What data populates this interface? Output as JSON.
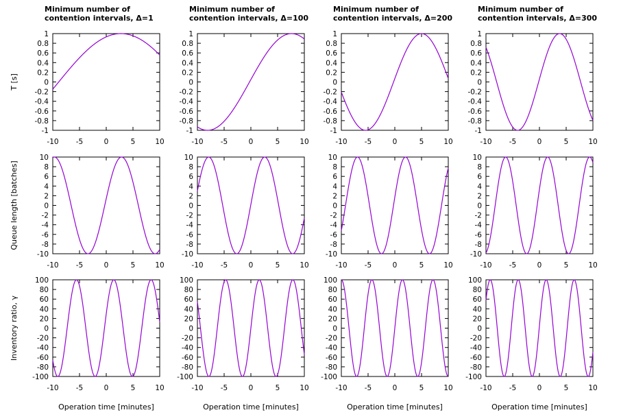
{
  "chart_data": {
    "type": "line",
    "layout": "3 rows x 4 columns",
    "line_color": "#9400d3",
    "column_titles": [
      [
        "Minimum number of",
        "contention intervals, Δ=1"
      ],
      [
        "Minimum number of",
        "contention intervals, Δ=100"
      ],
      [
        "Minimum number of",
        "contention intervals, Δ=200"
      ],
      [
        "Minimum number of",
        "contention intervals, Δ=300"
      ]
    ],
    "row_ylabels": [
      "T [s]",
      "Queue length [batches]",
      "Inventory ratio, γ"
    ],
    "xlabel": "Operation time [minutes]",
    "x_range": [
      -10,
      10
    ],
    "x_ticks": [
      "-10",
      "-5",
      "0",
      "5",
      "10"
    ],
    "rows": [
      {
        "ylim": [
          -1,
          1
        ],
        "y_ticks": [
          "-1",
          "-0.8",
          "-0.6",
          "-0.4",
          "-0.2",
          "0",
          "0.2",
          "0.4",
          "0.6",
          "0.8",
          "1"
        ],
        "series": [
          {
            "name": "T [s], Δ=1",
            "amplitude": 1,
            "frequency": 0.135,
            "phase": 1.2
          },
          {
            "name": "T [s], Δ=100",
            "amplitude": 1,
            "frequency": 0.2,
            "phase": 0.05
          },
          {
            "name": "T [s], Δ=200",
            "amplitude": 1,
            "frequency": 0.3,
            "phase": 0.07
          },
          {
            "name": "T [s], Δ=300",
            "amplitude": 1,
            "frequency": 0.4,
            "phase": 0.06
          }
        ]
      },
      {
        "ylim": [
          -10,
          10
        ],
        "y_ticks": [
          "-10",
          "-8",
          "-6",
          "-4",
          "-2",
          "0",
          "2",
          "4",
          "6",
          "8",
          "10"
        ],
        "series": [
          {
            "name": "Queue length, Δ=1",
            "amplitude": 10,
            "frequency": 0.5,
            "phase": 0.14
          },
          {
            "name": "Queue length, Δ=100",
            "amplitude": 10,
            "frequency": 0.6,
            "phase": 0.02
          },
          {
            "name": "Queue length, Δ=200",
            "amplitude": 10,
            "frequency": 0.7,
            "phase": 0.17
          },
          {
            "name": "Queue length, Δ=300",
            "amplitude": 10,
            "frequency": 0.8,
            "phase": 0.34
          }
        ]
      },
      {
        "ylim": [
          -100,
          100
        ],
        "y_ticks": [
          "-100",
          "-80",
          "-60",
          "-40",
          "-20",
          "0",
          "20",
          "40",
          "60",
          "80",
          "100"
        ],
        "series": [
          {
            "name": "Inventory ratio, Δ=1",
            "amplitude": 100,
            "frequency": 0.9,
            "phase": 0.3
          },
          {
            "name": "Inventory ratio, Δ=100",
            "amplitude": 100,
            "frequency": 1.0,
            "phase": 0.0
          },
          {
            "name": "Inventory ratio, Δ=200",
            "amplitude": 100,
            "frequency": 1.1,
            "phase": 0.0
          },
          {
            "name": "Inventory ratio, Δ=300",
            "amplitude": 100,
            "frequency": 1.2,
            "phase": 0.05
          }
        ]
      }
    ]
  }
}
